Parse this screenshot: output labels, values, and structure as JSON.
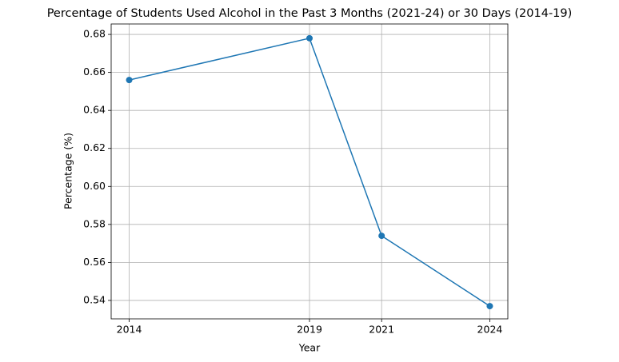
{
  "chart_data": {
    "type": "line",
    "title": "Percentage of Students Used Alcohol in the Past 3 Months (2021-24) or 30 Days (2014-19)",
    "x_label": "Year",
    "y_label": "Percentage (%)",
    "x": [
      2014,
      2019,
      2021,
      2024
    ],
    "series": [
      {
        "name": "Percentage",
        "color": "#1f77b4",
        "values": [
          0.656,
          0.678,
          0.574,
          0.537
        ]
      }
    ],
    "xlim": [
      2013.5,
      2024.5
    ],
    "xticks": [
      2014,
      2019,
      2021,
      2024
    ],
    "ylim": [
      0.5303,
      0.6855
    ],
    "yticks": [
      0.54,
      0.56,
      0.58,
      {
        "value": 0.6,
        "label": "0.60"
      },
      0.62,
      0.64,
      0.66,
      0.68
    ],
    "grid": true
  }
}
